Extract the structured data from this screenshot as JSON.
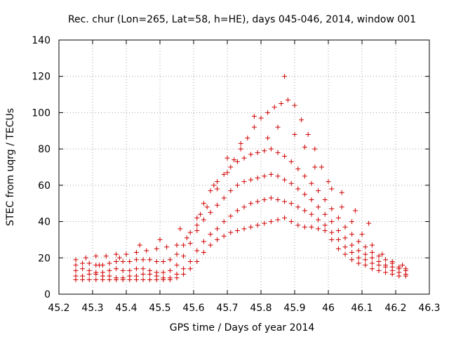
{
  "chart_data": {
    "type": "scatter",
    "title": "Rec. chur (Lon=265, Lat=58, h=HE), days 045-046, 2014, window 001",
    "xlabel": "GPS time / Days of year 2014",
    "ylabel": "STEC from uqrg / TECUs",
    "xlim": [
      45.2,
      46.3
    ],
    "ylim": [
      0,
      140
    ],
    "xticks": [
      "45.2",
      "45.3",
      "45.4",
      "45.5",
      "45.6",
      "45.7",
      "45.8",
      "45.9",
      "46",
      "46.1",
      "46.2",
      "46.3"
    ],
    "yticks": [
      "0",
      "20",
      "40",
      "60",
      "80",
      "100",
      "120",
      "140"
    ],
    "grid": true,
    "marker": "plus",
    "color": "#d00000",
    "series": [
      {
        "x": [
          45.25,
          45.27,
          45.29,
          45.31,
          45.33,
          45.35,
          45.37,
          45.39,
          45.41,
          45.43,
          45.45,
          45.47,
          45.49,
          45.51,
          45.53,
          45.55,
          45.57,
          45.59,
          45.61,
          45.63,
          45.65,
          45.67,
          45.69,
          45.71,
          45.73,
          45.75,
          45.77,
          45.79,
          45.81,
          45.83,
          45.85,
          45.87,
          45.89,
          45.91,
          45.93,
          45.95,
          45.97,
          45.99,
          46.01,
          46.03,
          46.05,
          46.07,
          46.09,
          46.11,
          46.13,
          46.15,
          46.17,
          46.19,
          46.21,
          46.23
        ],
        "y": [
          8,
          8,
          8,
          8,
          8,
          8,
          8,
          8,
          8,
          8,
          8,
          8,
          8,
          8,
          8,
          9,
          11,
          14,
          18,
          23,
          27,
          30,
          32,
          34,
          35,
          36,
          37,
          38,
          39,
          40,
          41,
          42,
          40,
          38,
          37,
          37,
          36,
          35,
          30,
          25,
          22,
          19,
          17,
          16,
          14,
          13,
          12,
          11,
          10,
          10
        ]
      },
      {
        "x": [
          45.25,
          45.27,
          45.29,
          45.31,
          45.33,
          45.35,
          45.37,
          45.39,
          45.41,
          45.43,
          45.45,
          45.47,
          45.49,
          45.51,
          45.53,
          45.55,
          45.57,
          45.59,
          45.61,
          45.63,
          45.65,
          45.67,
          45.69,
          45.71,
          45.73,
          45.75,
          45.77,
          45.79,
          45.81,
          45.83,
          45.85,
          45.87,
          45.89,
          45.91,
          45.93,
          45.95,
          45.97,
          45.99,
          46.01,
          46.03,
          46.05,
          46.07,
          46.09,
          46.11,
          46.13,
          46.15,
          46.17,
          46.19,
          46.21,
          46.23
        ],
        "y": [
          10,
          10,
          11,
          11,
          10,
          10,
          9,
          9,
          10,
          10,
          11,
          11,
          10,
          9,
          9,
          11,
          14,
          18,
          24,
          29,
          33,
          36,
          40,
          43,
          46,
          48,
          50,
          51,
          52,
          53,
          52,
          51,
          50,
          48,
          46,
          44,
          41,
          38,
          34,
          30,
          26,
          23,
          20,
          19,
          17,
          16,
          15,
          13,
          12,
          11
        ]
      },
      {
        "x": [
          45.25,
          45.27,
          45.29,
          45.31,
          45.33,
          45.35,
          45.37,
          45.39,
          45.41,
          45.43,
          45.45,
          45.47,
          45.49,
          45.51,
          45.53,
          45.55,
          45.57,
          45.59,
          45.61,
          45.63,
          45.65,
          45.67,
          45.69,
          45.71,
          45.73,
          45.75,
          45.77,
          45.79,
          45.81,
          45.83,
          45.85,
          45.87,
          45.89,
          45.91,
          45.93,
          45.95,
          45.97,
          45.99,
          46.01,
          46.03,
          46.05,
          46.07,
          46.09,
          46.11,
          46.13,
          46.15,
          46.17,
          46.19,
          46.21,
          46.23
        ],
        "y": [
          13,
          14,
          13,
          12,
          12,
          13,
          14,
          13,
          13,
          14,
          14,
          13,
          12,
          12,
          13,
          16,
          21,
          28,
          35,
          41,
          45,
          49,
          53,
          57,
          60,
          62,
          63,
          64,
          65,
          66,
          65,
          63,
          61,
          58,
          55,
          52,
          48,
          44,
          40,
          35,
          31,
          27,
          24,
          22,
          20,
          18,
          16,
          15,
          14,
          13
        ]
      },
      {
        "x": [
          45.25,
          45.27,
          45.29,
          45.31,
          45.33,
          45.35,
          45.37,
          45.39,
          45.41,
          45.43,
          45.45,
          45.47,
          45.49,
          45.51,
          45.53,
          45.55,
          45.57,
          45.59,
          45.61,
          45.63,
          45.65,
          45.67,
          45.69,
          45.71,
          45.73,
          45.75,
          45.77,
          45.79,
          45.81,
          45.83,
          45.85,
          45.87,
          45.89,
          45.91,
          45.93,
          45.95,
          45.97,
          45.99,
          46.01,
          46.03,
          46.05,
          46.07,
          46.09,
          46.11,
          46.13,
          46.15,
          46.17,
          46.19,
          46.21,
          46.23
        ],
        "y": [
          16,
          17,
          17,
          16,
          16,
          17,
          18,
          18,
          18,
          19,
          19,
          19,
          18,
          18,
          19,
          22,
          27,
          34,
          42,
          50,
          57,
          62,
          66,
          70,
          73,
          75,
          77,
          78,
          79,
          80,
          78,
          76,
          73,
          69,
          65,
          61,
          57,
          52,
          47,
          42,
          37,
          33,
          29,
          26,
          23,
          21,
          19,
          17,
          15,
          14
        ]
      },
      {
        "x": [
          45.25,
          45.28,
          45.31,
          45.34,
          45.37,
          45.4,
          45.43,
          45.46,
          45.49,
          45.52,
          45.55,
          45.58,
          45.61,
          45.64,
          45.67,
          45.7,
          45.72,
          45.74,
          45.76,
          45.78,
          45.8,
          45.82,
          45.84,
          45.86,
          45.88,
          45.9,
          45.92,
          45.94,
          45.96,
          45.98,
          46.01,
          46.04,
          46.07,
          46.1,
          46.13,
          46.16,
          46.19,
          46.22
        ],
        "y": [
          19,
          20,
          21,
          21,
          22,
          22,
          23,
          24,
          25,
          26,
          27,
          31,
          38,
          48,
          58,
          67,
          74,
          80,
          86,
          92,
          97,
          100,
          103,
          105,
          107,
          104,
          96,
          88,
          80,
          70,
          58,
          48,
          40,
          33,
          27,
          22,
          18,
          16
        ]
      },
      {
        "x": [
          45.32,
          45.38,
          45.44,
          45.5,
          45.56,
          45.62,
          45.66,
          45.7,
          45.74,
          45.78,
          45.82,
          45.85,
          45.87,
          45.9,
          45.93,
          45.96,
          46.0,
          46.04,
          46.08,
          46.12
        ],
        "y": [
          16,
          20,
          27,
          30,
          36,
          44,
          60,
          75,
          83,
          98,
          86,
          92,
          120,
          88,
          81,
          70,
          62,
          56,
          46,
          39
        ]
      }
    ]
  }
}
